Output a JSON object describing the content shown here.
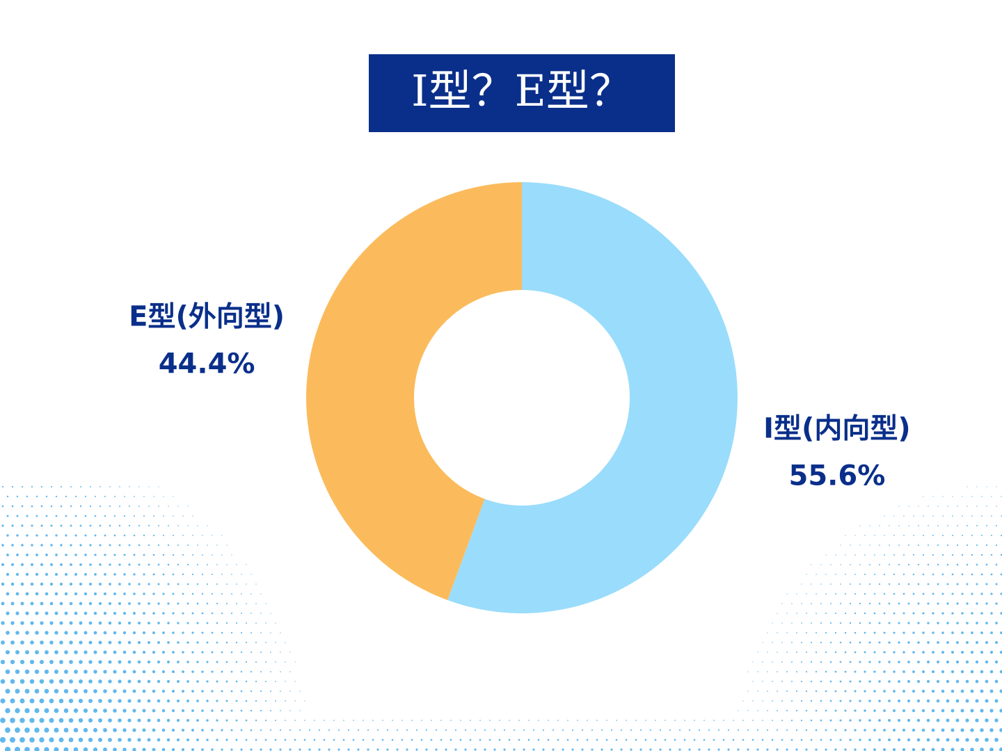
{
  "chart_data": {
    "type": "donut",
    "title": "I型？E型？",
    "categories": [
      "I型(内向型)",
      "E型(外向型)"
    ],
    "values": [
      55.6,
      44.4
    ],
    "value_labels": [
      "55.6%",
      "44.4%"
    ],
    "colors": [
      "#9adcfb",
      "#fbbb5c"
    ]
  }
}
